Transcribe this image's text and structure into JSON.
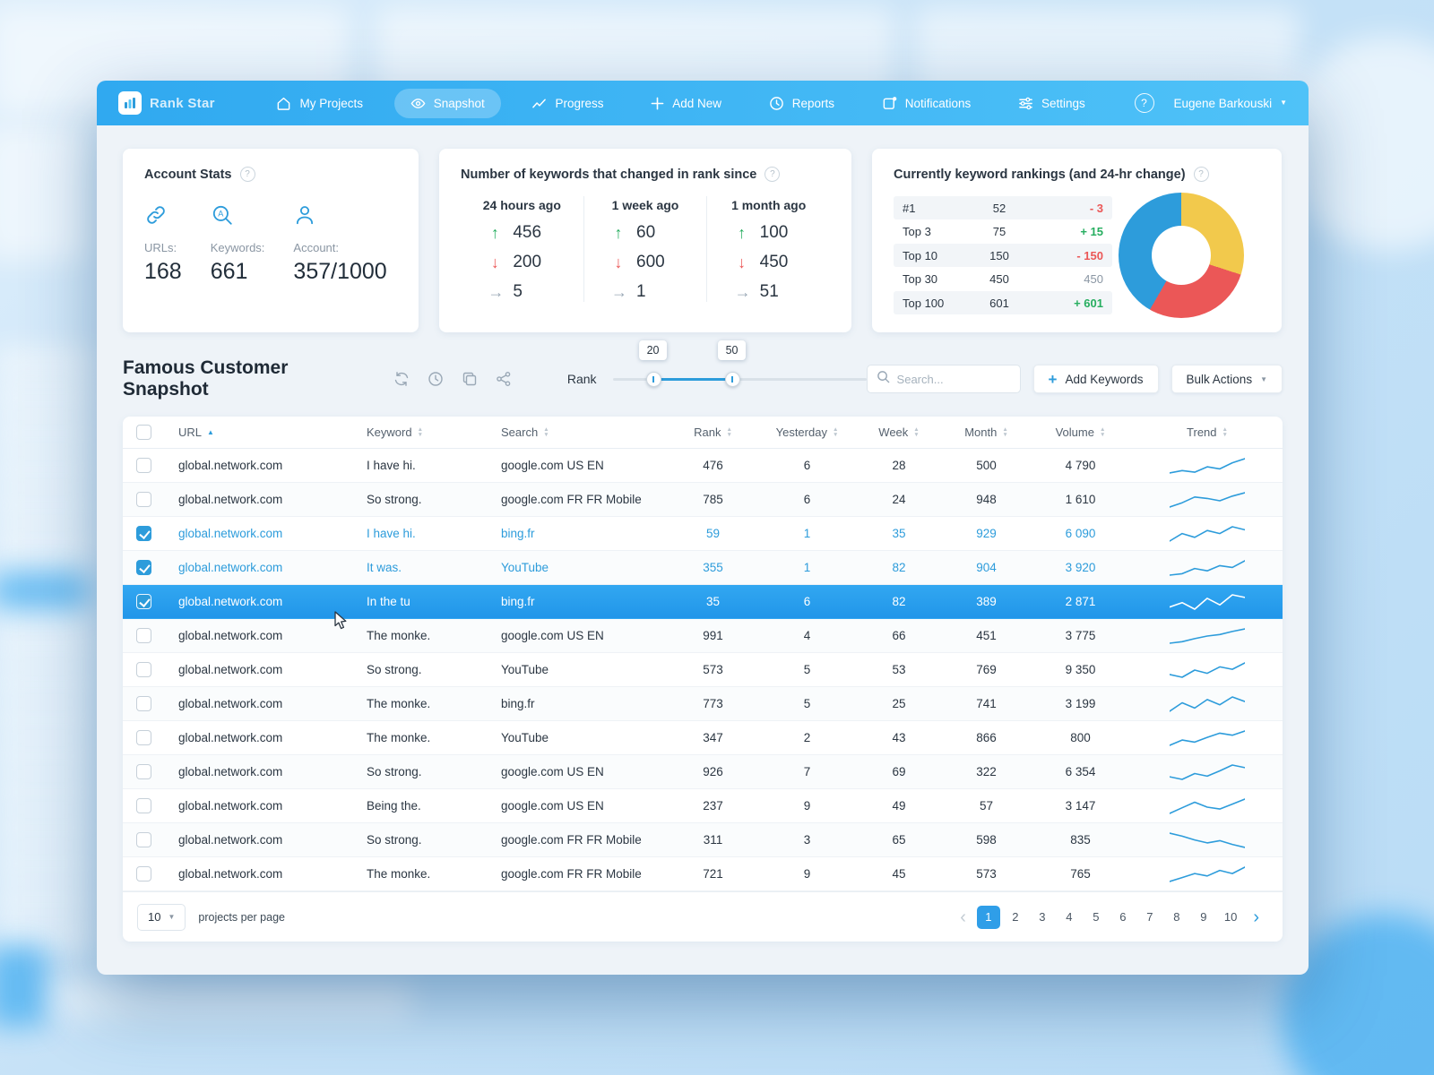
{
  "icons": {
    "help": "?",
    "caret_down": "▼",
    "sort_asc": "▲",
    "sort_desc": "▼",
    "prev": "‹",
    "next": "›",
    "plus": "+",
    "arrow_up": "↑",
    "arrow_down": "↓",
    "arrow_flat": "→"
  },
  "nav": {
    "logo_text": "Rank Star",
    "items": [
      {
        "label": "My Projects",
        "icon": "home-icon",
        "active": false
      },
      {
        "label": "Snapshot",
        "icon": "eye-icon",
        "active": true
      },
      {
        "label": "Progress",
        "icon": "line-chart-icon",
        "active": false
      },
      {
        "label": "Add New",
        "icon": "plus-icon",
        "active": false
      },
      {
        "label": "Reports",
        "icon": "clock-icon",
        "active": false
      },
      {
        "label": "Notifications",
        "icon": "notification-icon",
        "active": false
      },
      {
        "label": "Settings",
        "icon": "sliders-icon",
        "active": false
      }
    ],
    "user_name": "Eugene Barkouski"
  },
  "account_stats": {
    "title": "Account Stats",
    "stats": [
      {
        "icon": "link-icon",
        "label": "URLs:",
        "value": "168"
      },
      {
        "icon": "keyword-search-icon",
        "label": "Keywords:",
        "value": "661"
      },
      {
        "icon": "user-icon",
        "label": "Account:",
        "value": "357/1000"
      }
    ]
  },
  "rank_changes": {
    "title": "Number of keywords that changed in rank since",
    "columns": [
      {
        "period": "24 hours ago",
        "up": "456",
        "down": "200",
        "same": "5"
      },
      {
        "period": "1 week ago",
        "up": "60",
        "down": "600",
        "same": "1"
      },
      {
        "period": "1 month ago",
        "up": "100",
        "down": "450",
        "same": "51"
      }
    ]
  },
  "rankings": {
    "title": "Currently keyword rankings (and 24-hr change)",
    "rows": [
      {
        "label": "#1",
        "value": "52",
        "change": "- 3",
        "direction": "down"
      },
      {
        "label": "Top 3",
        "value": "75",
        "change": "+ 15",
        "direction": "up"
      },
      {
        "label": "Top 10",
        "value": "150",
        "change": "- 150",
        "direction": "down"
      },
      {
        "label": "Top 30",
        "value": "450",
        "change": "450",
        "direction": "flat"
      },
      {
        "label": "Top 100",
        "value": "601",
        "change": "+ 601",
        "direction": "up"
      }
    ],
    "donut_segments": [
      {
        "name": "yellow",
        "color": "#F2C94C",
        "deg": 108
      },
      {
        "name": "red",
        "color": "#EB5757",
        "deg": 102
      },
      {
        "name": "blue",
        "color": "#2D9CDB",
        "deg": 150
      }
    ]
  },
  "snapshot": {
    "title": "Famous Customer Snapshot",
    "tools": [
      "sync-icon",
      "history-icon",
      "copy-icon",
      "share-icon"
    ],
    "rank_label": "Rank",
    "slider": {
      "from": "20",
      "to": "50"
    },
    "search_placeholder": "Search...",
    "add_keywords": "Add Keywords",
    "bulk_actions": "Bulk Actions"
  },
  "table": {
    "columns": [
      "URL",
      "Keyword",
      "Search",
      "Rank",
      "Yesterday",
      "Week",
      "Month",
      "Volume",
      "Trend"
    ],
    "rows": [
      {
        "url": "global.network.com",
        "keyword": "I have hi.",
        "search": "google.com US EN",
        "rank": "476",
        "yesterday": "6",
        "week": "28",
        "month": "500",
        "volume": "4 790",
        "state": "",
        "trend": [
          3,
          3.6,
          3.2,
          4.5,
          4,
          5.5,
          6.5
        ]
      },
      {
        "url": "global.network.com",
        "keyword": "So strong.",
        "search": "google.com FR FR Mobile",
        "rank": "785",
        "yesterday": "6",
        "week": "24",
        "month": "948",
        "volume": "1 610",
        "state": "",
        "trend": [
          2,
          3.5,
          5.5,
          5,
          4.2,
          5.8,
          7
        ]
      },
      {
        "url": "global.network.com",
        "keyword": "I have hi.",
        "search": "bing.fr",
        "rank": "59",
        "yesterday": "1",
        "week": "35",
        "month": "929",
        "volume": "6 090",
        "state": "checked",
        "trend": [
          3,
          5,
          4,
          5.8,
          5,
          6.8,
          6
        ]
      },
      {
        "url": "global.network.com",
        "keyword": "It was.",
        "search": "YouTube",
        "rank": "355",
        "yesterday": "1",
        "week": "82",
        "month": "904",
        "volume": "3 920",
        "state": "checked",
        "trend": [
          2.5,
          3,
          4.8,
          4,
          5.8,
          5.2,
          7.5
        ]
      },
      {
        "url": "global.network.com",
        "keyword": "In the tu",
        "search": "bing.fr",
        "rank": "35",
        "yesterday": "6",
        "week": "82",
        "month": "389",
        "volume": "2 871",
        "state": "selected",
        "trend": [
          4,
          5,
          3.5,
          6,
          4.5,
          6.8,
          6.2
        ]
      },
      {
        "url": "global.network.com",
        "keyword": "The monke.",
        "search": "google.com US EN",
        "rank": "991",
        "yesterday": "4",
        "week": "66",
        "month": "451",
        "volume": "3 775",
        "state": "",
        "trend": [
          2,
          2.6,
          3.8,
          4.8,
          5.4,
          6.6,
          7.6
        ]
      },
      {
        "url": "global.network.com",
        "keyword": "So strong.",
        "search": "YouTube",
        "rank": "573",
        "yesterday": "5",
        "week": "53",
        "month": "769",
        "volume": "9 350",
        "state": "",
        "trend": [
          4.5,
          3.8,
          5.6,
          4.8,
          6.4,
          5.8,
          7.4
        ]
      },
      {
        "url": "global.network.com",
        "keyword": "The monke.",
        "search": "bing.fr",
        "rank": "773",
        "yesterday": "5",
        "week": "25",
        "month": "741",
        "volume": "3 199",
        "state": "",
        "trend": [
          3,
          5.6,
          4,
          6.6,
          5,
          7.4,
          6
        ]
      },
      {
        "url": "global.network.com",
        "keyword": "The monke.",
        "search": "YouTube",
        "rank": "347",
        "yesterday": "2",
        "week": "43",
        "month": "866",
        "volume": "800",
        "state": "",
        "trend": [
          2,
          4,
          3.2,
          5,
          6.6,
          5.8,
          7.4
        ]
      },
      {
        "url": "global.network.com",
        "keyword": "So strong.",
        "search": "google.com US EN",
        "rank": "926",
        "yesterday": "7",
        "week": "69",
        "month": "322",
        "volume": "6 354",
        "state": "",
        "trend": [
          4,
          3.2,
          5,
          4.2,
          5.8,
          7.6,
          6.8
        ]
      },
      {
        "url": "global.network.com",
        "keyword": "Being the.",
        "search": "google.com US EN",
        "rank": "237",
        "yesterday": "9",
        "week": "49",
        "month": "57",
        "volume": "3 147",
        "state": "",
        "trend": [
          3,
          4.8,
          6.6,
          5,
          4.4,
          6,
          7.6
        ]
      },
      {
        "url": "global.network.com",
        "keyword": "So strong.",
        "search": "google.com FR FR Mobile",
        "rank": "311",
        "yesterday": "3",
        "week": "65",
        "month": "598",
        "volume": "835",
        "state": "",
        "trend": [
          7.4,
          6.6,
          5.6,
          4.8,
          5.4,
          4.4,
          3.6
        ]
      },
      {
        "url": "global.network.com",
        "keyword": "The monke.",
        "search": "google.com FR FR Mobile",
        "rank": "721",
        "yesterday": "9",
        "week": "45",
        "month": "573",
        "volume": "765",
        "state": "",
        "trend": [
          3,
          4,
          5,
          4.4,
          5.8,
          5,
          6.6
        ]
      }
    ]
  },
  "pagination": {
    "per_page": "10",
    "per_page_label": "projects per page",
    "pages": [
      {
        "label": "1",
        "state": "active"
      },
      {
        "label": "2",
        "state": ""
      },
      {
        "label": "3",
        "state": ""
      },
      {
        "label": "4",
        "state": ""
      },
      {
        "label": "5",
        "state": ""
      },
      {
        "label": "6",
        "state": ""
      },
      {
        "label": "7",
        "state": ""
      },
      {
        "label": "8",
        "state": ""
      },
      {
        "label": "9",
        "state": ""
      },
      {
        "label": "10",
        "state": ""
      }
    ]
  }
}
